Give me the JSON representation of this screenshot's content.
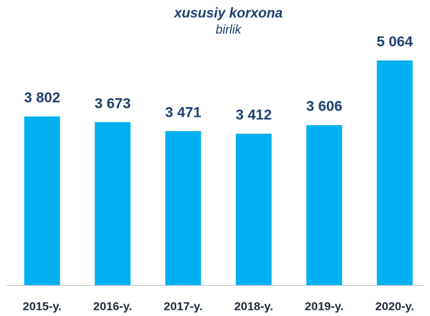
{
  "chart_data": {
    "type": "bar",
    "title": "xususiy korxona",
    "subtitle": "birlik",
    "categories": [
      "2015-y.",
      "2016-y.",
      "2017-y.",
      "2018-y.",
      "2019-y.",
      "2020-y."
    ],
    "values": [
      3802,
      3673,
      3471,
      3412,
      3606,
      5064
    ],
    "value_labels": [
      "3 802",
      "3 673",
      "3 471",
      "3 412",
      "3 606",
      "5 064"
    ],
    "color": "#00b0f0",
    "label_color": "#1f3f6e",
    "grid": false
  }
}
